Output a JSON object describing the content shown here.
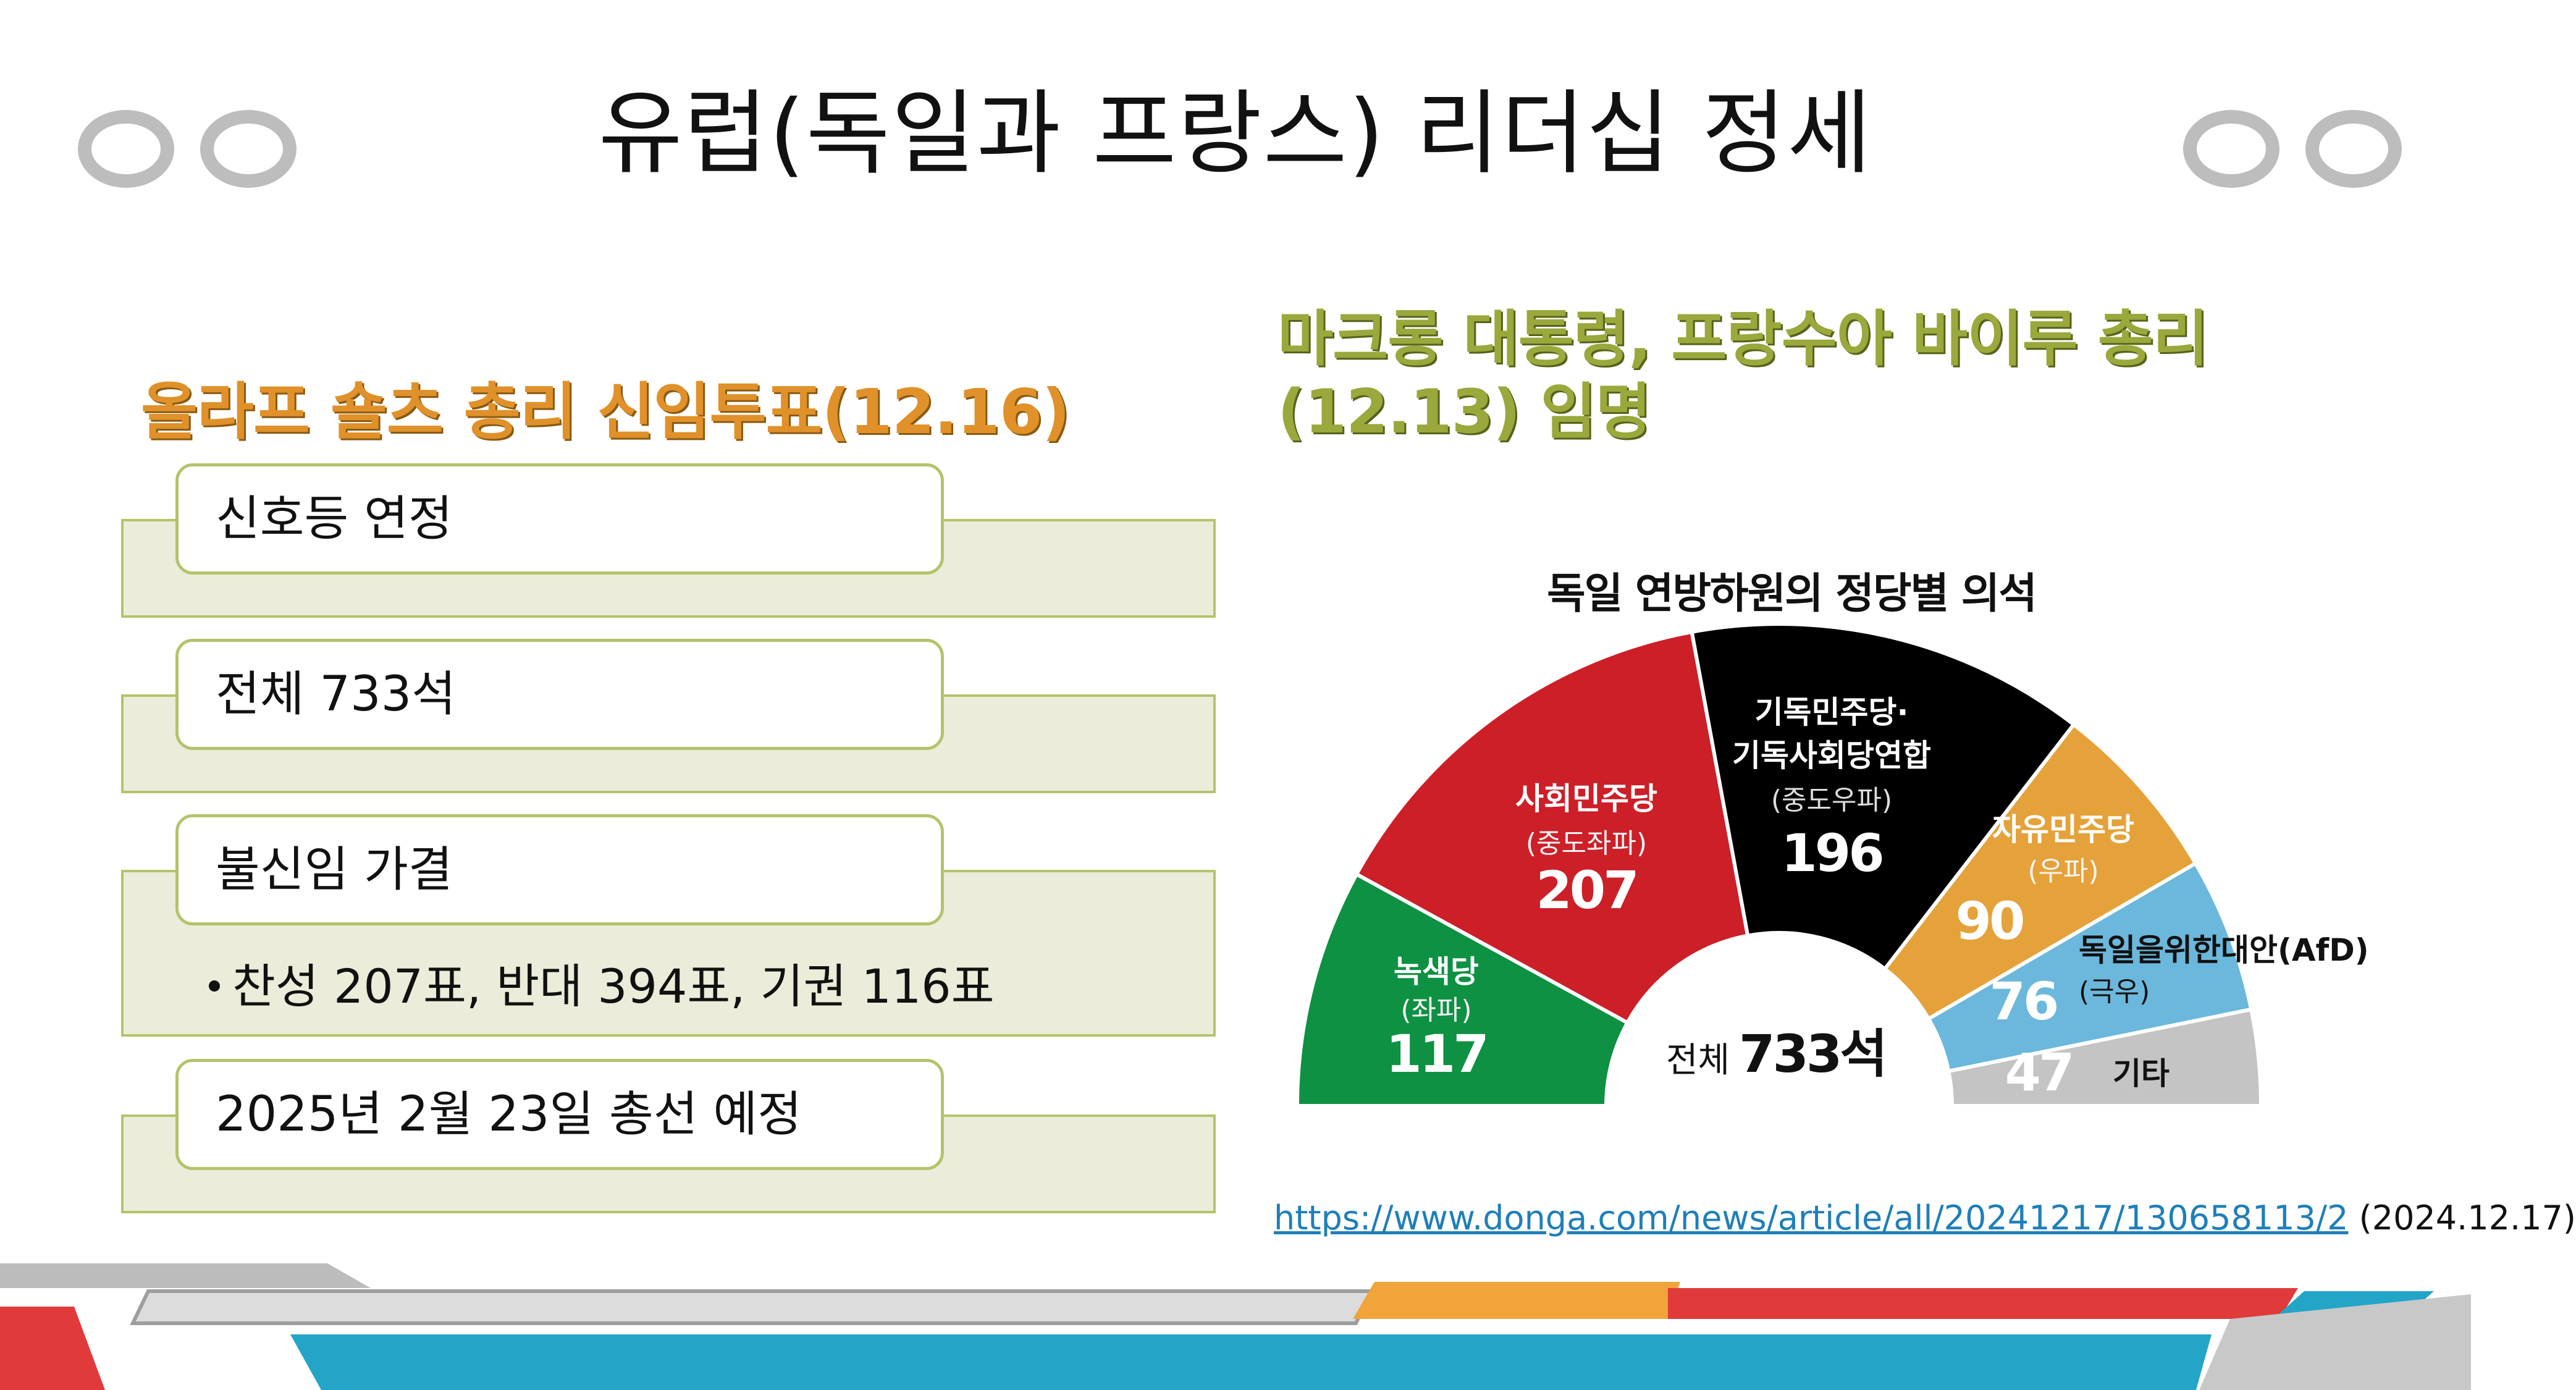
{
  "title": "유럽(독일과 프랑스) 리더십 정세",
  "left": {
    "heading": "올라프 숄츠 총리 신임투표(12.16)",
    "items": [
      {
        "label": "신호등 연정"
      },
      {
        "label": "전체 733석"
      },
      {
        "label": "불신임 가결",
        "sub": "찬성 207표, 반대 394표, 기권 116표"
      },
      {
        "label": "2025년 2월 23일 총선 예정"
      }
    ]
  },
  "right": {
    "heading": "마크롱 대통령, 프랑수아 바이루 총리 (12.13) 임명"
  },
  "chart_data": {
    "type": "pie",
    "style": "semicircle-donut",
    "title": "독일 연방하원의 정당별 의석",
    "total_label": "전체",
    "total_value": "733석",
    "series": [
      {
        "name": "녹색당",
        "sub": "(좌파)",
        "value": 117,
        "color": "#0e9142"
      },
      {
        "name": "사회민주당",
        "sub": "(중도좌파)",
        "value": 207,
        "color": "#cc1f28"
      },
      {
        "name": "기독민주당·",
        "name2": "기독사회당연합",
        "sub": "(중도우파)",
        "value": 196,
        "color": "#000000"
      },
      {
        "name": "자유민주당",
        "sub": "(우파)",
        "value": 90,
        "color": "#e5a23a"
      },
      {
        "name": "독일을위한대안(AfD)",
        "sub": "(극우)",
        "value": 76,
        "color": "#6bb8dc"
      },
      {
        "name": "기타",
        "sub": "",
        "value": 47,
        "color": "#c4c4c4"
      }
    ]
  },
  "source": {
    "url": "https://www.donga.com/news/article/all/20241217/130658113/2",
    "date": "(2024.12.17)"
  },
  "colors": {
    "left_heading": "#e0912a",
    "right_heading": "#9aa83c",
    "box_border": "#b5c36a",
    "box_fill": "#ebecd9"
  }
}
